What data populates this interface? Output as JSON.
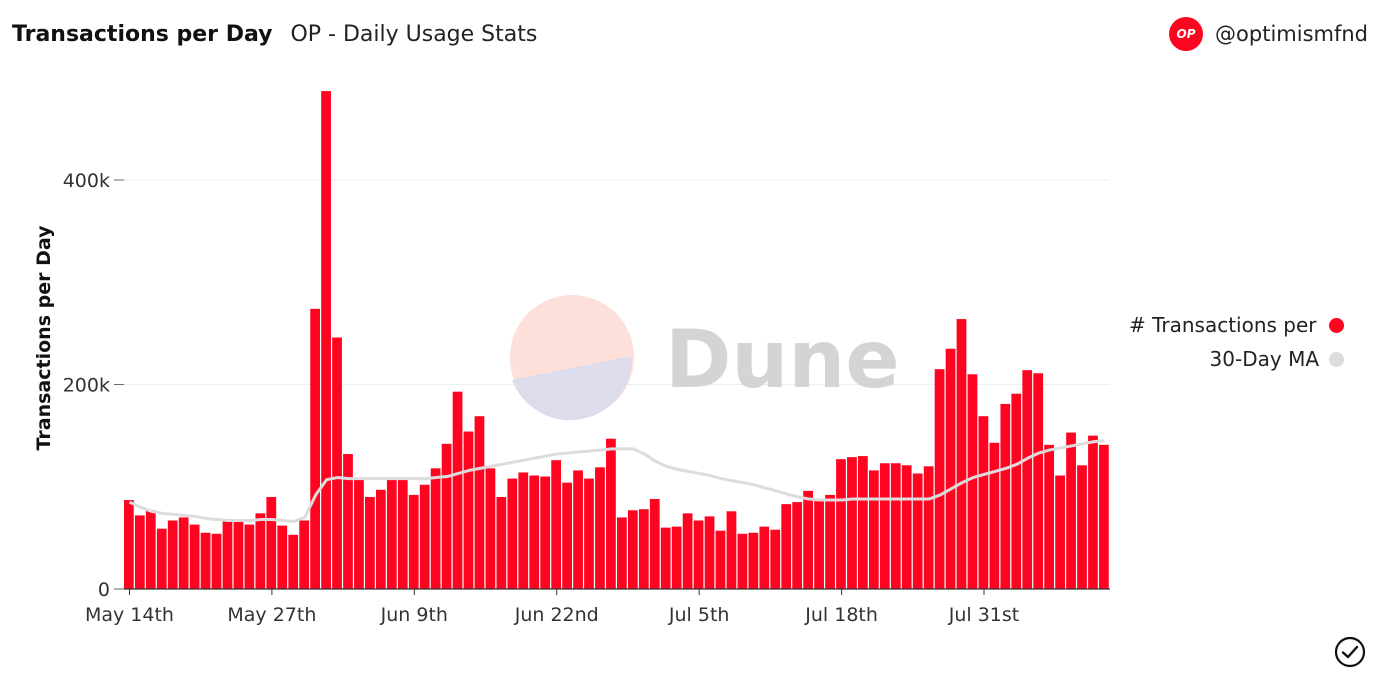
{
  "header": {
    "title": "Transactions per Day",
    "subtitle": "OP - Daily Usage Stats",
    "logo_text": "OP",
    "handle": "@optimismfnd"
  },
  "watermark": {
    "text": "Dune"
  },
  "legend": {
    "items": [
      {
        "label": "# Transactions per Day",
        "color": "#ff0420"
      },
      {
        "label": "30-Day MA",
        "color": "#dddddd"
      }
    ]
  },
  "colors": {
    "bar": "#ff0420",
    "ma_line": "#dcdcdc",
    "grid": "#eeeeee",
    "logo": "#ff0420"
  },
  "icons": {
    "check": "check-circle-icon"
  },
  "chart_data": {
    "type": "bar",
    "ylabel": "Transactions per Day",
    "ylim": [
      0,
      490000
    ],
    "yticks": [
      0,
      200000,
      400000
    ],
    "ytick_labels": [
      "0",
      "200k",
      "400k"
    ],
    "xtick_labels": [
      "May 14th",
      "May 27th",
      "Jun 9th",
      "Jun 22nd",
      "Jul 5th",
      "Jul 18th",
      "Jul 31st"
    ],
    "xtick_index": [
      0,
      13,
      26,
      39,
      52,
      65,
      78
    ],
    "grid": true,
    "legend_position": "right",
    "series": [
      {
        "name": "# Transactions per Day",
        "values": [
          87000,
          72000,
          77000,
          59000,
          67000,
          70000,
          63000,
          55000,
          54000,
          67000,
          66000,
          63000,
          74000,
          90000,
          62000,
          53000,
          67000,
          274000,
          487000,
          246000,
          132000,
          107000,
          90000,
          97000,
          109000,
          107000,
          92000,
          102000,
          118000,
          142000,
          193000,
          154000,
          169000,
          118000,
          90000,
          108000,
          114000,
          111000,
          110000,
          126000,
          104000,
          116000,
          108000,
          119000,
          147000,
          70000,
          77000,
          78000,
          88000,
          60000,
          61000,
          74000,
          67000,
          71000,
          57000,
          76000,
          54000,
          55000,
          61000,
          58000,
          83000,
          85000,
          96000,
          86000,
          92000,
          127000,
          129000,
          130000,
          116000,
          123000,
          123000,
          121000,
          113000,
          120000,
          215000,
          235000,
          264000,
          210000,
          169000,
          143000,
          181000,
          191000,
          214000,
          211000,
          141000,
          111000,
          153000,
          121000,
          150000,
          141000
        ]
      },
      {
        "name": "30-Day MA",
        "values": [
          85000,
          80000,
          76000,
          74000,
          73000,
          72000,
          71000,
          69000,
          68000,
          67000,
          67000,
          67000,
          68000,
          68000,
          67000,
          66000,
          70000,
          92000,
          107000,
          109000,
          108000,
          108000,
          108000,
          108000,
          108000,
          108000,
          108000,
          108000,
          109000,
          110000,
          113000,
          116000,
          118000,
          120000,
          122000,
          124000,
          126000,
          128000,
          130000,
          132000,
          133000,
          134000,
          135000,
          136000,
          137000,
          137000,
          137000,
          132000,
          125000,
          120000,
          117000,
          115000,
          113000,
          111000,
          108000,
          106000,
          104000,
          102000,
          99000,
          96000,
          93000,
          90000,
          88000,
          87000,
          87000,
          87000,
          88000,
          88000,
          88000,
          88000,
          88000,
          88000,
          88000,
          88000,
          92000,
          98000,
          104000,
          109000,
          112000,
          115000,
          118000,
          122000,
          128000,
          133000,
          136000,
          138000,
          140000,
          142000,
          144000,
          145000
        ]
      }
    ]
  }
}
